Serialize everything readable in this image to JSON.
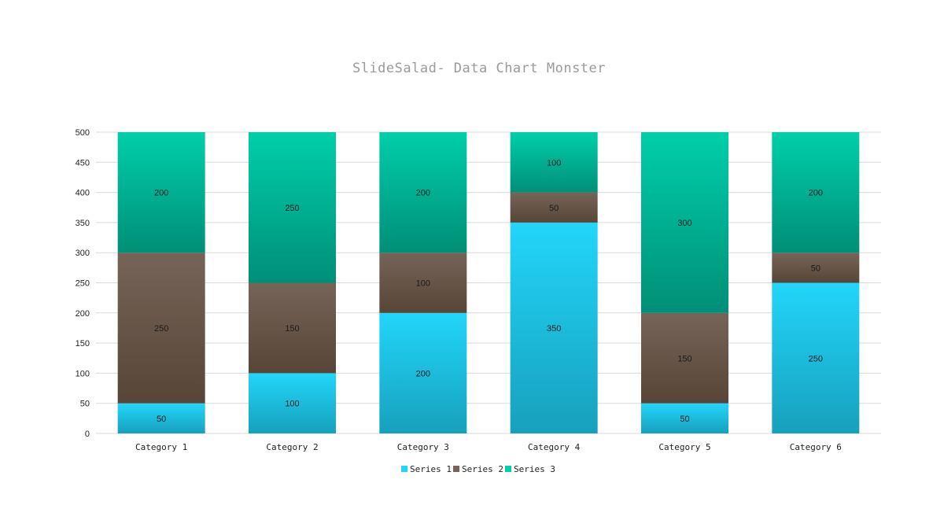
{
  "chart_data": {
    "type": "bar",
    "stacked": true,
    "title": "SlideSalad- Data Chart Monster",
    "xlabel": "",
    "ylabel": "",
    "categories": [
      "Category 1",
      "Category 2",
      "Category 3",
      "Category 4",
      "Category 5",
      "Category 6"
    ],
    "series": [
      {
        "name": "Series 1",
        "values": [
          50,
          100,
          200,
          350,
          50,
          250
        ],
        "color_top": "#22d6fa",
        "color_bottom": "#17a0bc"
      },
      {
        "name": "Series 2",
        "values": [
          250,
          150,
          100,
          50,
          150,
          50
        ],
        "color_top": "#766458",
        "color_bottom": "#574538"
      },
      {
        "name": "Series 3",
        "values": [
          200,
          250,
          200,
          100,
          300,
          200
        ],
        "color_top": "#00cfaa",
        "color_bottom": "#008f78"
      }
    ],
    "ylim": [
      0,
      500
    ],
    "yticks": [
      0,
      50,
      100,
      150,
      200,
      250,
      300,
      350,
      400,
      450,
      500
    ],
    "grid": true,
    "legend": "bottom-center",
    "data_labels": true
  }
}
